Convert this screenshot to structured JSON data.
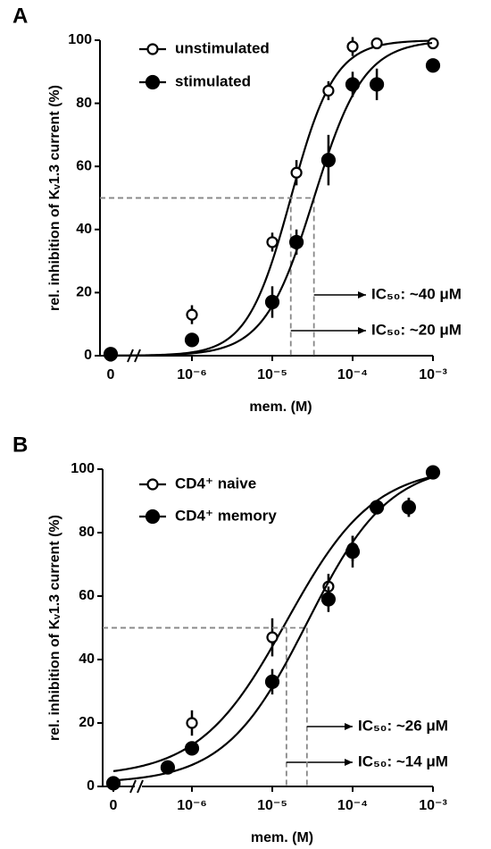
{
  "chart_data": [
    {
      "type": "scatter",
      "label": "A",
      "xlabel": "mem. (M)",
      "ylabel": "rel. inhibition of Kᵥ1.3 current (%)",
      "xscale": "log",
      "xlim": [
        0,
        0.001
      ],
      "ylim": [
        0,
        100
      ],
      "yticks": [
        0,
        20,
        40,
        60,
        80,
        100
      ],
      "xticks": [
        0,
        {
          "value": 1e-06,
          "label": "10⁻⁶"
        },
        {
          "value": 1e-05,
          "label": "10⁻⁵"
        },
        {
          "value": 0.0001,
          "label": "10⁻⁴"
        },
        {
          "value": 0.001,
          "label": "10⁻³"
        }
      ],
      "series": [
        {
          "name": "unstimulated",
          "color": "#000000",
          "marker": "open",
          "x": [
            0,
            1e-06,
            1e-05,
            2e-05,
            5e-05,
            0.0001,
            0.0002,
            0.001
          ],
          "values": [
            0,
            13,
            36,
            58,
            84,
            98,
            99,
            99
          ],
          "errors": [
            0,
            3,
            3,
            4,
            3,
            3,
            1,
            1
          ],
          "curve": {
            "ic50": 1.7e-05,
            "hill": 1.6,
            "bottom": 0,
            "top": 100,
            "label": "IC₅₀: ~20 μM"
          }
        },
        {
          "name": "stimulated",
          "color": "#000000",
          "marker": "filled",
          "x": [
            0,
            1e-06,
            1e-05,
            2e-05,
            5e-05,
            0.0001,
            0.0002,
            0.001
          ],
          "values": [
            0.5,
            5,
            17,
            36,
            62,
            86,
            86,
            92
          ],
          "errors": [
            0,
            1,
            5,
            4,
            8,
            4,
            5,
            2
          ],
          "curve": {
            "ic50": 3.3e-05,
            "hill": 1.4,
            "bottom": 0,
            "top": 100,
            "label": "IC₅₀: ~40 μM"
          }
        }
      ]
    },
    {
      "type": "scatter",
      "label": "B",
      "xlabel": "mem. (M)",
      "ylabel": "rel. inhibition of Kᵥ1.3 current (%)",
      "xscale": "log",
      "xlim": [
        0,
        0.001
      ],
      "ylim": [
        0,
        100
      ],
      "yticks": [
        0,
        20,
        40,
        60,
        80,
        100
      ],
      "xticks": [
        0,
        {
          "value": 1e-06,
          "label": "10⁻⁶"
        },
        {
          "value": 1e-05,
          "label": "10⁻⁵"
        },
        {
          "value": 0.0001,
          "label": "10⁻⁴"
        },
        {
          "value": 0.001,
          "label": "10⁻³"
        }
      ],
      "series": [
        {
          "name": "CD4⁺ naive",
          "color": "#000000",
          "marker": "open",
          "x": [
            0,
            1e-06,
            1e-05,
            5e-05,
            0.0001,
            0.0002,
            0.0005,
            0.001
          ],
          "values": [
            1,
            20,
            47,
            63,
            75,
            88,
            88,
            99
          ],
          "errors": [
            0,
            4,
            6,
            4,
            4,
            2,
            3,
            2
          ],
          "curve": {
            "ic50": 1.5e-05,
            "hill": 0.8,
            "bottom": 3,
            "top": 101,
            "label": "IC₅₀: ~14 μM"
          }
        },
        {
          "name": "CD4⁺ memory",
          "color": "#000000",
          "marker": "filled",
          "x": [
            0,
            5e-07,
            1e-06,
            1e-05,
            5e-05,
            0.0001,
            0.0002,
            0.0005,
            0.001
          ],
          "values": [
            1,
            6,
            12,
            33,
            59,
            74,
            88,
            88,
            99
          ],
          "errors": [
            0,
            1,
            2,
            4,
            4,
            5,
            2,
            3,
            2
          ],
          "curve": {
            "ic50": 2.7e-05,
            "hill": 0.85,
            "bottom": 1,
            "top": 102,
            "label": "IC₅₀: ~26 μM"
          }
        }
      ]
    }
  ]
}
